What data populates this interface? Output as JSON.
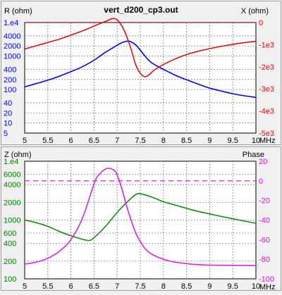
{
  "colors": {
    "background": "#f0f0f0",
    "plot_bg": "#ffffff",
    "resistance": "#0000ff",
    "reactance": "#ff0000",
    "reactance_line": "#dd1111",
    "impedance": "#008000",
    "impedance_line": "#138a13",
    "phase": "#ff00ff",
    "phase_line": "#e020e0",
    "grid": "#808080",
    "zero_r": "#cc0000",
    "zero_p": "#dd00dd"
  },
  "chart_data": [
    {
      "type": "line",
      "title": "vert_d200_cp3.out",
      "xlabel": "MHz",
      "x_ticks": [
        "5",
        "5.5",
        "6",
        "6.5",
        "7",
        "7.5",
        "8",
        "8.5",
        "9",
        "9.5",
        "10"
      ],
      "x_range": [
        5,
        10
      ],
      "y_left": {
        "label": "R (ohm)",
        "scale": "log",
        "range": [
          5,
          10000
        ],
        "ticks": [
          {
            "v": 10000,
            "t": "1.e4"
          },
          {
            "v": 4000,
            "t": "4000"
          },
          {
            "v": 2000,
            "t": "2000"
          },
          {
            "v": 1000,
            "t": "1000"
          },
          {
            "v": 400,
            "t": "400"
          },
          {
            "v": 200,
            "t": "200"
          },
          {
            "v": 100,
            "t": "100"
          },
          {
            "v": 40,
            "t": "40"
          },
          {
            "v": 20,
            "t": "20"
          },
          {
            "v": 10,
            "t": "10"
          },
          {
            "v": 5,
            "t": "5"
          }
        ]
      },
      "y_right": {
        "label": "X (ohm)",
        "scale": "linear",
        "range": [
          -5000,
          0
        ],
        "ticks": [
          {
            "v": 0,
            "t": "0"
          },
          {
            "v": -1000,
            "t": "-1e3"
          },
          {
            "v": -2000,
            "t": "-2e3"
          },
          {
            "v": -3000,
            "t": "-3e3"
          },
          {
            "v": -4000,
            "t": "-4e3"
          },
          {
            "v": -5000,
            "t": "-5e3"
          }
        ]
      },
      "series": [
        {
          "name": "R (ohm)",
          "axis": "left",
          "x": [
            5,
            5.25,
            5.5,
            5.75,
            6,
            6.25,
            6.5,
            6.75,
            7,
            7.1,
            7.2,
            7.25,
            7.3,
            7.4,
            7.5,
            7.6,
            7.75,
            8,
            8.25,
            8.5,
            8.75,
            9,
            9.25,
            9.5,
            9.75,
            10
          ],
          "values": [
            120,
            150,
            190,
            250,
            340,
            480,
            750,
            1300,
            2100,
            2500,
            2750,
            2800,
            2650,
            2150,
            1500,
            1000,
            620,
            400,
            270,
            195,
            145,
            110,
            90,
            75,
            65,
            58
          ]
        },
        {
          "name": "X (ohm)",
          "axis": "right",
          "x": [
            5,
            5.25,
            5.5,
            5.75,
            6,
            6.25,
            6.5,
            6.75,
            6.9,
            7,
            7.1,
            7.2,
            7.3,
            7.4,
            7.5,
            7.6,
            7.7,
            7.8,
            8,
            8.25,
            8.5,
            8.75,
            9,
            9.25,
            9.5,
            9.75,
            10
          ],
          "values": [
            -1200,
            -1050,
            -900,
            -750,
            -570,
            -380,
            -160,
            50,
            180,
            120,
            -150,
            -600,
            -1200,
            -1900,
            -2300,
            -2450,
            -2350,
            -2150,
            -1900,
            -1650,
            -1450,
            -1300,
            -1180,
            -1080,
            -990,
            -910,
            -850
          ]
        }
      ]
    },
    {
      "type": "line",
      "xlabel": "MHz",
      "x_ticks": [
        "5",
        "5.5",
        "6",
        "6.5",
        "7",
        "7.5",
        "8",
        "8.5",
        "9",
        "9.5",
        "10"
      ],
      "x_range": [
        5,
        10
      ],
      "y_left": {
        "label": "Z (ohm)",
        "scale": "log",
        "range": [
          100,
          10000
        ],
        "ticks": [
          {
            "v": 10000,
            "t": "1.e4"
          },
          {
            "v": 6000,
            "t": "6000"
          },
          {
            "v": 4000,
            "t": "4000"
          },
          {
            "v": 2000,
            "t": "2000"
          },
          {
            "v": 1000,
            "t": "1000"
          },
          {
            "v": 600,
            "t": "600"
          },
          {
            "v": 400,
            "t": "400"
          },
          {
            "v": 200,
            "t": "200"
          },
          {
            "v": 100,
            "t": "100"
          }
        ]
      },
      "y_right": {
        "label": "Phase",
        "scale": "linear",
        "range": [
          -100,
          20
        ],
        "ticks": [
          {
            "v": 20,
            "t": "20"
          },
          {
            "v": 0,
            "t": "0"
          },
          {
            "v": -20,
            "t": "-20"
          },
          {
            "v": -40,
            "t": "-40"
          },
          {
            "v": -60,
            "t": "-60"
          },
          {
            "v": -80,
            "t": "-80"
          },
          {
            "v": -100,
            "t": "-100"
          }
        ]
      },
      "series": [
        {
          "name": "Z (ohm)",
          "axis": "left",
          "x": [
            5,
            5.25,
            5.5,
            5.75,
            6,
            6.25,
            6.4,
            6.5,
            6.75,
            7,
            7.25,
            7.4,
            7.5,
            7.75,
            8,
            8.25,
            8.5,
            8.75,
            9,
            9.25,
            9.5,
            9.75,
            10
          ],
          "values": [
            1000,
            900,
            780,
            640,
            540,
            470,
            450,
            500,
            780,
            1350,
            2150,
            2700,
            2800,
            2450,
            2050,
            1800,
            1580,
            1400,
            1270,
            1150,
            1050,
            960,
            880
          ]
        },
        {
          "name": "Phase",
          "axis": "right",
          "x": [
            5,
            5.25,
            5.5,
            5.75,
            6,
            6.25,
            6.5,
            6.6,
            6.75,
            6.85,
            6.95,
            7,
            7.1,
            7.2,
            7.3,
            7.4,
            7.5,
            7.6,
            7.75,
            8,
            8.25,
            8.5,
            8.75,
            9,
            9.5,
            10
          ],
          "values": [
            -85,
            -83,
            -79,
            -72,
            -60,
            -38,
            -3,
            6,
            12,
            12.5,
            10,
            6,
            -8,
            -25,
            -40,
            -53,
            -62,
            -69,
            -75,
            -80,
            -83,
            -84.5,
            -85.5,
            -86,
            -86.3,
            -86.5
          ]
        }
      ]
    }
  ]
}
